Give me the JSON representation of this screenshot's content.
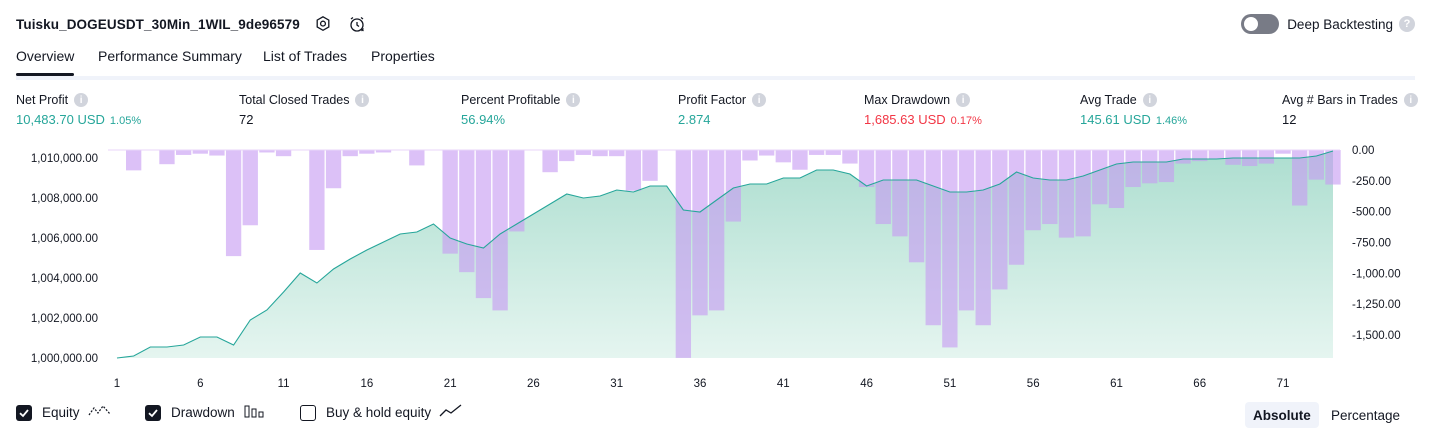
{
  "header": {
    "title": "Tuisku_DOGEUSDT_30Min_1WIL_9de96579",
    "deep_backtesting_label": "Deep Backtesting",
    "deep_backtesting_enabled": false
  },
  "tabs": [
    {
      "label": "Overview",
      "active": true
    },
    {
      "label": "Performance Summary",
      "active": false
    },
    {
      "label": "List of Trades",
      "active": false
    },
    {
      "label": "Properties",
      "active": false
    }
  ],
  "metrics": [
    {
      "label": "Net Profit",
      "value": "10,483.70 USD",
      "pct": "1.05%",
      "color": "#26a69a"
    },
    {
      "label": "Total Closed Trades",
      "value": "72",
      "pct": "",
      "color": "#131722"
    },
    {
      "label": "Percent Profitable",
      "value": "56.94%",
      "pct": "",
      "color": "#26a69a"
    },
    {
      "label": "Profit Factor",
      "value": "2.874",
      "pct": "",
      "color": "#26a69a"
    },
    {
      "label": "Max Drawdown",
      "value": "1,685.63 USD",
      "pct": "0.17%",
      "color": "#f23645"
    },
    {
      "label": "Avg Trade",
      "value": "145.61 USD",
      "pct": "1.46%",
      "color": "#26a69a"
    },
    {
      "label": "Avg # Bars in Trades",
      "value": "12",
      "pct": "",
      "color": "#131722"
    }
  ],
  "chart_data": {
    "type": "area",
    "x": [
      1,
      2,
      3,
      4,
      5,
      6,
      7,
      8,
      9,
      10,
      11,
      12,
      13,
      14,
      15,
      16,
      17,
      18,
      19,
      20,
      21,
      22,
      23,
      24,
      25,
      26,
      27,
      28,
      29,
      30,
      31,
      32,
      33,
      34,
      35,
      36,
      37,
      38,
      39,
      40,
      41,
      42,
      43,
      44,
      45,
      46,
      47,
      48,
      49,
      50,
      51,
      52,
      53,
      54,
      55,
      56,
      57,
      58,
      59,
      60,
      61,
      62,
      63,
      64,
      65,
      66,
      67,
      68,
      69,
      70,
      71,
      72,
      73,
      74
    ],
    "x_ticks": [
      "1",
      "6",
      "11",
      "16",
      "21",
      "26",
      "31",
      "36",
      "41",
      "46",
      "51",
      "56",
      "61",
      "66",
      "71"
    ],
    "left_axis": {
      "ticks": [
        "1,000,000.00",
        "1,002,000.00",
        "1,004,000.00",
        "1,006,000.00",
        "1,008,000.00",
        "1,010,000.00"
      ],
      "ylim": [
        1000000,
        1010400
      ]
    },
    "right_axis": {
      "ticks": [
        "0.00",
        "-250.00",
        "-500.00",
        "-750.00",
        "-1,000.00",
        "-1,250.00",
        "-1,500.00"
      ],
      "ylim": [
        -1685.63,
        0
      ]
    },
    "series": [
      {
        "name": "Equity",
        "type": "area",
        "axis": "left",
        "color": "#26a69a",
        "values": [
          1000000,
          1000100,
          1000550,
          1000550,
          1000650,
          1001050,
          1001050,
          1000650,
          1001900,
          1002400,
          1003300,
          1004250,
          1003750,
          1004450,
          1004950,
          1005400,
          1005800,
          1006200,
          1006300,
          1006700,
          1006000,
          1005700,
          1005500,
          1006200,
          1006700,
          1007200,
          1007700,
          1008200,
          1008000,
          1008100,
          1008400,
          1008300,
          1008600,
          1008600,
          1007400,
          1007300,
          1007900,
          1008500,
          1008700,
          1008700,
          1009000,
          1009000,
          1009400,
          1009400,
          1009200,
          1008600,
          1008900,
          1008900,
          1008900,
          1008600,
          1008300,
          1008300,
          1008400,
          1008700,
          1009300,
          1009000,
          1008900,
          1008900,
          1009100,
          1009400,
          1009700,
          1009800,
          1009800,
          1009800,
          1009950,
          1009950,
          1009950,
          1010000,
          1010000,
          1010000,
          1010000,
          1010000,
          1010100,
          1010350
        ]
      },
      {
        "name": "Drawdown",
        "type": "bar",
        "axis": "right",
        "color": "#c79bf2",
        "values": [
          0,
          -165,
          0,
          -115,
          -40,
          -30,
          -45,
          -860,
          -610,
          -20,
          -50,
          0,
          -810,
          -310,
          -50,
          -30,
          -20,
          0,
          -125,
          0,
          -840,
          -990,
          -1200,
          -1300,
          -660,
          0,
          -180,
          -90,
          -40,
          -50,
          -50,
          -330,
          -250,
          0,
          -1685,
          -1340,
          -1300,
          -580,
          -85,
          -45,
          -100,
          -160,
          -40,
          -40,
          -110,
          -300,
          -600,
          -700,
          -910,
          -1420,
          -1600,
          -1300,
          -1420,
          -1130,
          -930,
          -650,
          -600,
          -710,
          -700,
          -440,
          -470,
          -300,
          -270,
          -260,
          -110,
          -90,
          -70,
          -120,
          -130,
          -110,
          -30,
          -450,
          -240,
          -280
        ]
      }
    ]
  },
  "legend": [
    {
      "label": "Equity",
      "checked": true,
      "icon": "equity-line-icon"
    },
    {
      "label": "Drawdown",
      "checked": true,
      "icon": "drawdown-bars-icon"
    },
    {
      "label": "Buy & hold equity",
      "checked": false,
      "icon": "buy-hold-line-icon"
    }
  ],
  "modes": [
    {
      "label": "Absolute",
      "selected": true
    },
    {
      "label": "Percentage",
      "selected": false
    }
  ]
}
